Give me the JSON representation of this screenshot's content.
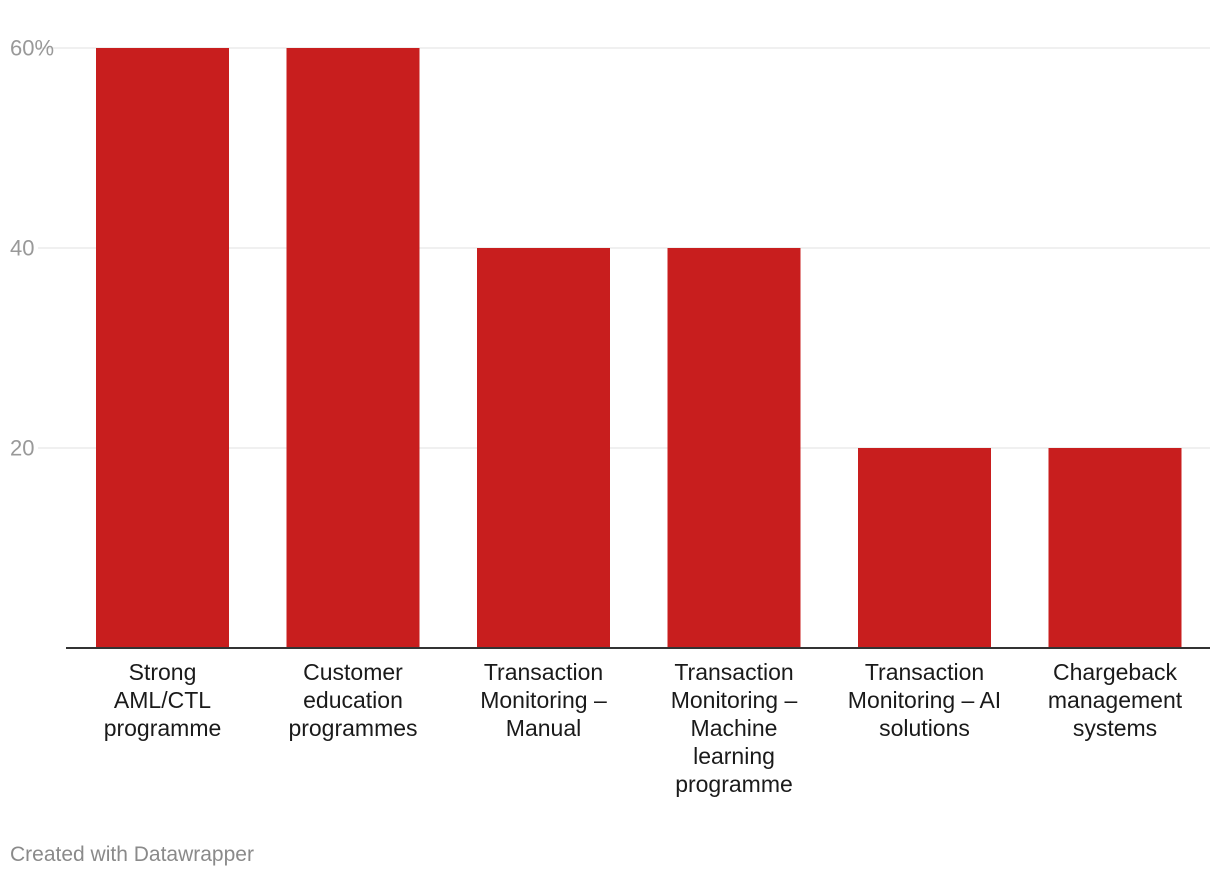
{
  "chart_data": {
    "type": "bar",
    "title": "",
    "xlabel": "",
    "ylabel": "",
    "categories": [
      [
        "Strong",
        "AML/CTL",
        "programme"
      ],
      [
        "Customer",
        "education",
        "programmes"
      ],
      [
        "Transaction",
        "Monitoring –",
        "Manual"
      ],
      [
        "Transaction",
        "Monitoring –",
        "Machine",
        "learning",
        "programme"
      ],
      [
        "Transaction",
        "Monitoring – AI",
        "solutions"
      ],
      [
        "Chargeback",
        "management",
        "systems"
      ]
    ],
    "values": [
      60,
      60,
      40,
      40,
      20,
      20
    ],
    "ylim": [
      0,
      60
    ],
    "yticks": [
      {
        "value": 20,
        "label": "20"
      },
      {
        "value": 40,
        "label": "40"
      },
      {
        "value": 60,
        "label": "60%"
      }
    ],
    "grid": true,
    "legend": "none",
    "colors": {
      "bar": "#c81e1e",
      "grid": "#e0e0e0",
      "axis": "#333333"
    }
  },
  "footer": {
    "credit": "Created with Datawrapper"
  }
}
